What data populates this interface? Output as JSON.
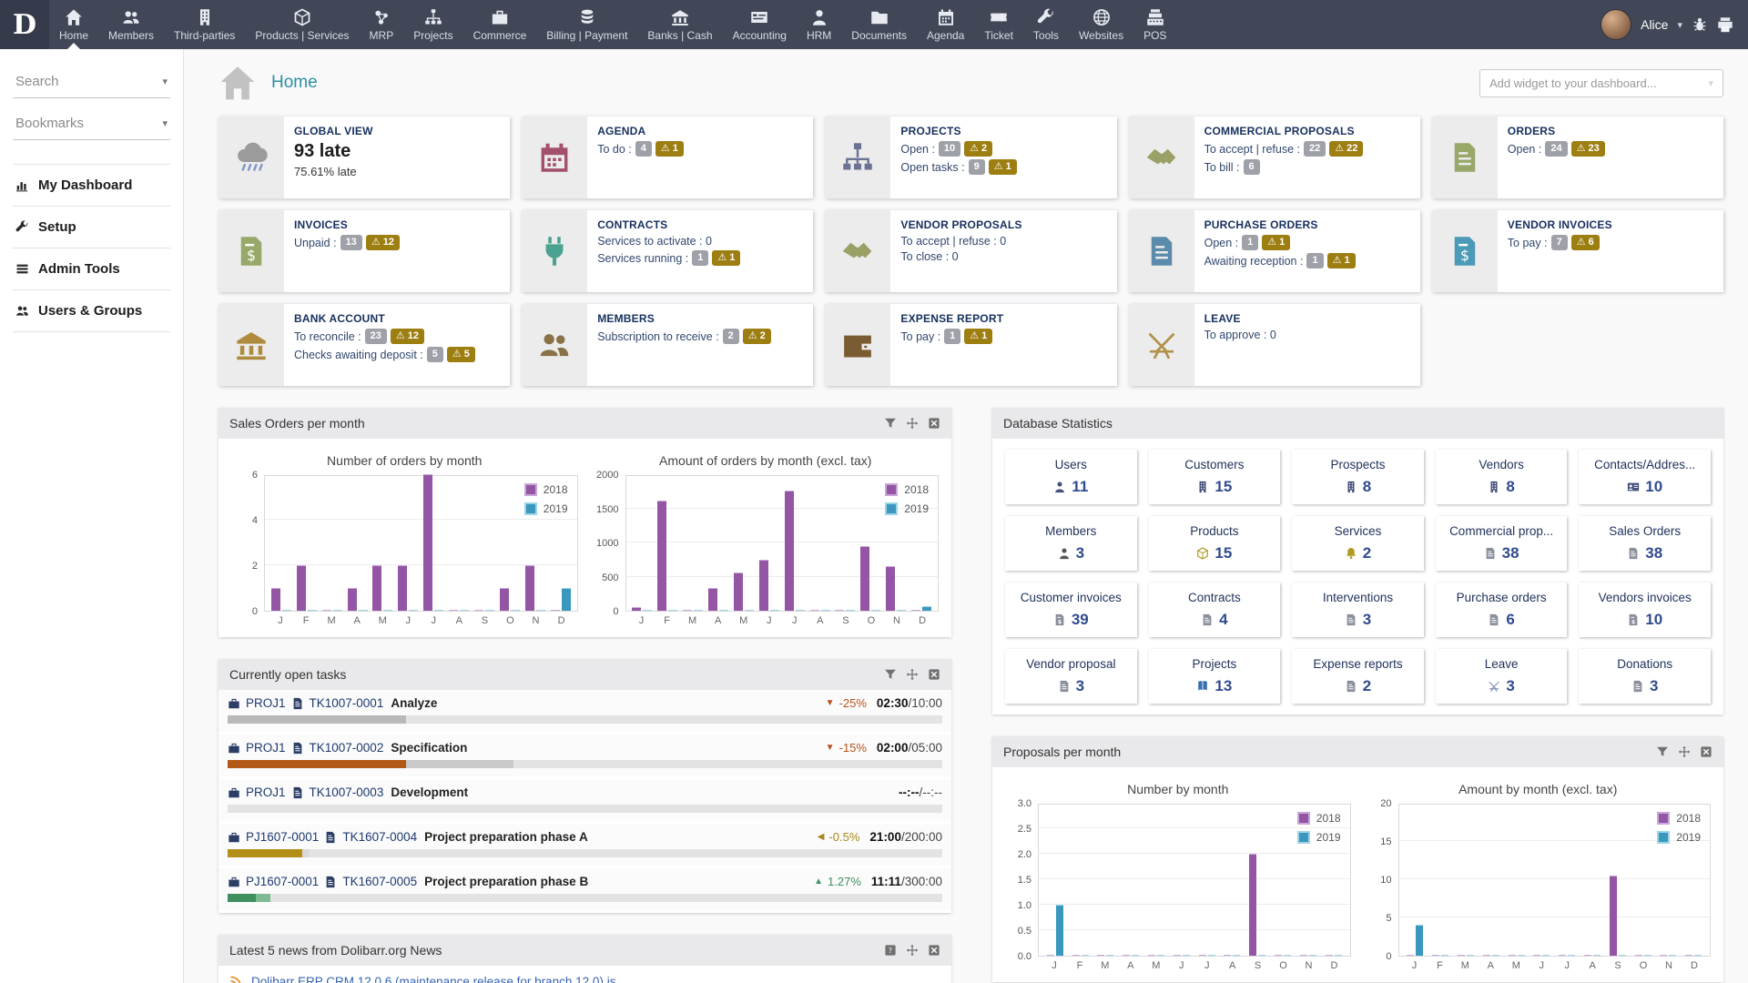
{
  "topnav": {
    "logo_letter": "D",
    "items": [
      {
        "label": "Home",
        "icon": "home-icon",
        "active": true
      },
      {
        "label": "Members",
        "icon": "members-icon"
      },
      {
        "label": "Third-parties",
        "icon": "building-icon"
      },
      {
        "label": "Products | Services",
        "icon": "cube-icon"
      },
      {
        "label": "MRP",
        "icon": "mrp-nodes-icon"
      },
      {
        "label": "Projects",
        "icon": "sitemap-icon"
      },
      {
        "label": "Commerce",
        "icon": "briefcase-icon"
      },
      {
        "label": "Billing | Payment",
        "icon": "coins-icon"
      },
      {
        "label": "Banks | Cash",
        "icon": "bank-icon"
      },
      {
        "label": "Accounting",
        "icon": "card-icon"
      },
      {
        "label": "HRM",
        "icon": "person-icon"
      },
      {
        "label": "Documents",
        "icon": "folder-icon"
      },
      {
        "label": "Agenda",
        "icon": "calendar-icon"
      },
      {
        "label": "Ticket",
        "icon": "ticket-icon"
      },
      {
        "label": "Tools",
        "icon": "wrench-icon"
      },
      {
        "label": "Websites",
        "icon": "globe-icon"
      },
      {
        "label": "POS",
        "icon": "register-icon"
      }
    ],
    "user_name": "Alice",
    "right_icons": [
      "bug-icon",
      "printer-icon"
    ]
  },
  "sidebar": {
    "search_label": "Search",
    "bookmarks_label": "Bookmarks",
    "items": [
      {
        "label": "My Dashboard",
        "icon": "chart-icon"
      },
      {
        "label": "Setup",
        "icon": "wrench-icon"
      },
      {
        "label": "Admin Tools",
        "icon": "list-icon"
      },
      {
        "label": "Users & Groups",
        "icon": "members-icon"
      }
    ]
  },
  "header": {
    "title": "Home",
    "add_widget_placeholder": "Add widget to your dashboard..."
  },
  "widgets": [
    {
      "title": "GLOBAL VIEW",
      "icon": "storm-icon",
      "color": "#8a8a8a",
      "big": "93 late",
      "sub": "75.61% late"
    },
    {
      "title": "AGENDA",
      "icon": "calendar-icon",
      "color": "#a3506b",
      "lines": [
        {
          "label": "To do :",
          "badges": [
            {
              "type": "count",
              "value": "4"
            },
            {
              "type": "warn",
              "value": "1"
            }
          ]
        }
      ]
    },
    {
      "title": "PROJECTS",
      "icon": "sitemap-icon",
      "color": "#6b7394",
      "lines": [
        {
          "label": "Open :",
          "badges": [
            {
              "type": "count",
              "value": "10"
            },
            {
              "type": "warn",
              "value": "2"
            }
          ]
        },
        {
          "label": "Open tasks :",
          "badges": [
            {
              "type": "count",
              "value": "9"
            },
            {
              "type": "warn",
              "value": "1"
            }
          ]
        }
      ]
    },
    {
      "title": "COMMERCIAL PROPOSALS",
      "icon": "handshake-icon",
      "color": "#9aa066",
      "lines": [
        {
          "label": "To accept | refuse :",
          "badges": [
            {
              "type": "count",
              "value": "22"
            },
            {
              "type": "warn",
              "value": "22"
            }
          ]
        },
        {
          "label": "To bill :",
          "badges": [
            {
              "type": "count",
              "value": "6"
            }
          ]
        }
      ]
    },
    {
      "title": "ORDERS",
      "icon": "document-icon",
      "color": "#98a869",
      "lines": [
        {
          "label": "Open :",
          "badges": [
            {
              "type": "count",
              "value": "24"
            },
            {
              "type": "warn",
              "value": "23"
            }
          ]
        }
      ]
    },
    {
      "title": "INVOICES",
      "icon": "invoice-icon",
      "color": "#98a869",
      "lines": [
        {
          "label": "Unpaid :",
          "badges": [
            {
              "type": "count",
              "value": "13"
            },
            {
              "type": "warn",
              "value": "12"
            }
          ]
        }
      ]
    },
    {
      "title": "CONTRACTS",
      "icon": "plug-icon",
      "color": "#4aa390",
      "lines": [
        {
          "label": "Services to activate : 0",
          "badges": []
        },
        {
          "label": "Services running :",
          "badges": [
            {
              "type": "count",
              "value": "1"
            },
            {
              "type": "warn",
              "value": "1"
            }
          ]
        }
      ]
    },
    {
      "title": "VENDOR PROPOSALS",
      "icon": "handshake-icon",
      "color": "#9aa066",
      "lines": [
        {
          "label": "To accept | refuse : 0",
          "badges": []
        },
        {
          "label": "To close : 0",
          "badges": []
        }
      ]
    },
    {
      "title": "PURCHASE ORDERS",
      "icon": "document-icon",
      "color": "#5b8bab",
      "lines": [
        {
          "label": "Open :",
          "badges": [
            {
              "type": "count",
              "value": "1"
            },
            {
              "type": "warn",
              "value": "1"
            }
          ]
        },
        {
          "label": "Awaiting reception :",
          "badges": [
            {
              "type": "count",
              "value": "1"
            },
            {
              "type": "warn",
              "value": "1"
            }
          ]
        }
      ]
    },
    {
      "title": "VENDOR INVOICES",
      "icon": "invoice-icon",
      "color": "#4a9ab8",
      "lines": [
        {
          "label": "To pay :",
          "badges": [
            {
              "type": "count",
              "value": "7"
            },
            {
              "type": "warn",
              "value": "6"
            }
          ]
        }
      ]
    },
    {
      "title": "BANK ACCOUNT",
      "icon": "bank-icon",
      "color": "#b08b3e",
      "lines": [
        {
          "label": "To reconcile :",
          "badges": [
            {
              "type": "count",
              "value": "23"
            },
            {
              "type": "warn",
              "value": "12"
            }
          ]
        },
        {
          "label": "Checks awaiting deposit :",
          "badges": [
            {
              "type": "count",
              "value": "5"
            },
            {
              "type": "warn",
              "value": "5"
            }
          ]
        }
      ]
    },
    {
      "title": "MEMBERS",
      "icon": "members-icon",
      "color": "#8a7248",
      "lines": [
        {
          "label": "Subscription to receive :",
          "badges": [
            {
              "type": "count",
              "value": "2"
            },
            {
              "type": "warn",
              "value": "2"
            }
          ]
        }
      ]
    },
    {
      "title": "EXPENSE REPORT",
      "icon": "wallet-icon",
      "color": "#7a5c33",
      "lines": [
        {
          "label": "To pay :",
          "badges": [
            {
              "type": "count",
              "value": "1"
            },
            {
              "type": "warn",
              "value": "1"
            }
          ]
        }
      ]
    },
    {
      "title": "LEAVE",
      "icon": "chair-icon",
      "color": "#b2914b",
      "lines": [
        {
          "label": "To approve : 0",
          "badges": []
        }
      ]
    }
  ],
  "panels": {
    "sales": {
      "title": "Sales Orders per month",
      "icons": [
        "filter-icon",
        "move-icon",
        "close-icon"
      ],
      "charts": [
        "sales_number",
        "sales_amount"
      ]
    },
    "tasks": {
      "title": "Currently open tasks",
      "icons": [
        "filter-icon",
        "move-icon",
        "close-icon"
      ]
    },
    "stats": {
      "title": "Database Statistics"
    },
    "proposals": {
      "title": "Proposals per month",
      "icons": [
        "filter-icon",
        "move-icon",
        "close-icon"
      ],
      "charts": [
        "proposals_number",
        "proposals_amount"
      ]
    },
    "news": {
      "title": "Latest 5 news from Dolibarr.org News",
      "icons": [
        "help-icon",
        "move-icon",
        "close-icon"
      ],
      "items": [
        {
          "text": "Dolibarr ERP CRM 12.0.6 (maintenance release for branch 12.0) is ..."
        }
      ]
    }
  },
  "tasks": [
    {
      "project": "PROJ1",
      "task_ref": "TK1007-0001",
      "task_label": "Analyze",
      "trend": "down",
      "percent": "-25%",
      "time_spent": "02:30",
      "time_planned": "10:00",
      "bar": [
        {
          "color": "#b9b9b9",
          "width": 25
        }
      ]
    },
    {
      "project": "PROJ1",
      "task_ref": "TK1007-0002",
      "task_label": "Specification",
      "trend": "down",
      "percent": "-15%",
      "time_spent": "02:00",
      "time_planned": "05:00",
      "bar": [
        {
          "color": "#b35917",
          "width": 25
        },
        {
          "color": "#c9c9c9",
          "width": 15
        }
      ]
    },
    {
      "project": "PROJ1",
      "task_ref": "TK1007-0003",
      "task_label": "Development",
      "trend": "",
      "percent": "",
      "time_spent": "--:--",
      "time_planned": "--:--",
      "bar": []
    },
    {
      "project": "PJ1607-0001",
      "task_ref": "TK1607-0004",
      "task_label": "Project preparation phase A",
      "trend": "left",
      "percent": "-0.5%",
      "time_spent": "21:00",
      "time_planned": "200:00",
      "bar": [
        {
          "color": "#b38f17",
          "width": 10.5
        },
        {
          "color": "#d9d9d9",
          "width": 1
        }
      ]
    },
    {
      "project": "PJ1607-0001",
      "task_ref": "TK1607-0005",
      "task_label": "Project preparation phase B",
      "trend": "up",
      "percent": "1.27%",
      "time_spent": "11:11",
      "time_planned": "300:00",
      "bar": [
        {
          "color": "#3f8f5f",
          "width": 4
        },
        {
          "color": "#7dbb94",
          "width": 2
        }
      ]
    }
  ],
  "stats": [
    {
      "label": "Users",
      "value": "11",
      "icon": "person-icon",
      "color": "#44517c"
    },
    {
      "label": "Customers",
      "value": "15",
      "icon": "building-icon",
      "color": "#44517c"
    },
    {
      "label": "Prospects",
      "value": "8",
      "icon": "building-icon",
      "color": "#44517c"
    },
    {
      "label": "Vendors",
      "value": "8",
      "icon": "building-icon",
      "color": "#44517c"
    },
    {
      "label": "Contacts/Addres...",
      "value": "10",
      "icon": "contact-icon",
      "color": "#44517c"
    },
    {
      "label": "Members",
      "value": "3",
      "icon": "person-icon",
      "color": "#555555"
    },
    {
      "label": "Products",
      "value": "15",
      "icon": "cube-icon",
      "color": "#b09a26"
    },
    {
      "label": "Services",
      "value": "2",
      "icon": "bell-icon",
      "color": "#b09a26"
    },
    {
      "label": "Commercial prop...",
      "value": "38",
      "icon": "document-icon",
      "color": "#8a8f9c"
    },
    {
      "label": "Sales Orders",
      "value": "38",
      "icon": "document-icon",
      "color": "#8a8f9c"
    },
    {
      "label": "Customer invoices",
      "value": "39",
      "icon": "invoice-icon",
      "color": "#8a8f9c"
    },
    {
      "label": "Contracts",
      "value": "4",
      "icon": "document-icon",
      "color": "#8a8f9c"
    },
    {
      "label": "Interventions",
      "value": "3",
      "icon": "document-icon",
      "color": "#8a8f9c"
    },
    {
      "label": "Purchase orders",
      "value": "6",
      "icon": "document-icon",
      "color": "#8a8f9c"
    },
    {
      "label": "Vendors invoices",
      "value": "10",
      "icon": "invoice-icon",
      "color": "#8a8f9c"
    },
    {
      "label": "Vendor proposal",
      "value": "3",
      "icon": "document-icon",
      "color": "#8a8f9c"
    },
    {
      "label": "Projects",
      "value": "13",
      "icon": "book-icon",
      "color": "#3a6fb0"
    },
    {
      "label": "Expense reports",
      "value": "2",
      "icon": "document-icon",
      "color": "#8a8f9c"
    },
    {
      "label": "Leave",
      "value": "3",
      "icon": "chair-icon",
      "color": "#7a8db0"
    },
    {
      "label": "Donations",
      "value": "3",
      "icon": "document-icon",
      "color": "#8a8f9c"
    }
  ],
  "chart_data": [
    {
      "id": "sales_number",
      "type": "bar",
      "title": "Number of orders by month",
      "categories": [
        "J",
        "F",
        "M",
        "A",
        "M",
        "J",
        "J",
        "A",
        "S",
        "O",
        "N",
        "D"
      ],
      "series": [
        {
          "name": "2018",
          "color": "#9455a5",
          "border": "#c8a8d8",
          "values": [
            1,
            2,
            0,
            1,
            2,
            2,
            6,
            0,
            0,
            1,
            2,
            0
          ]
        },
        {
          "name": "2019",
          "color": "#3a97bd",
          "border": "#9ed4e8",
          "values": [
            0,
            0,
            0,
            0,
            0,
            0,
            0,
            0,
            0,
            0,
            0,
            1
          ]
        }
      ],
      "ylim": [
        0,
        6
      ],
      "yticks": [
        0,
        2,
        4,
        6
      ],
      "ytick_labels": [
        "0",
        "2",
        "4",
        "6"
      ],
      "legend_position": "top-right",
      "grid": true
    },
    {
      "id": "sales_amount",
      "type": "bar",
      "title": "Amount of orders by month (excl. tax)",
      "categories": [
        "J",
        "F",
        "M",
        "A",
        "M",
        "J",
        "J",
        "A",
        "S",
        "O",
        "N",
        "D"
      ],
      "series": [
        {
          "name": "2018",
          "color": "#9455a5",
          "border": "#c8a8d8",
          "values": [
            50,
            1610,
            0,
            330,
            560,
            740,
            1760,
            0,
            0,
            940,
            650,
            0
          ]
        },
        {
          "name": "2019",
          "color": "#3a97bd",
          "border": "#9ed4e8",
          "values": [
            0,
            0,
            0,
            0,
            0,
            0,
            0,
            0,
            0,
            0,
            0,
            60
          ]
        }
      ],
      "ylim": [
        0,
        2000
      ],
      "yticks": [
        0,
        500,
        1000,
        1500,
        2000
      ],
      "ytick_labels": [
        "0",
        "500",
        "1000",
        "1500",
        "2000"
      ],
      "legend_position": "top-right",
      "grid": true
    },
    {
      "id": "proposals_number",
      "type": "bar",
      "title": "Number by month",
      "categories": [
        "J",
        "F",
        "M",
        "A",
        "M",
        "J",
        "J",
        "A",
        "S",
        "O",
        "N",
        "D"
      ],
      "series": [
        {
          "name": "2018",
          "color": "#9455a5",
          "border": "#c8a8d8",
          "values": [
            0,
            0,
            0,
            0,
            0,
            0,
            0,
            0,
            2,
            0,
            0,
            0
          ]
        },
        {
          "name": "2019",
          "color": "#3a97bd",
          "border": "#9ed4e8",
          "values": [
            1,
            0,
            0,
            0,
            0,
            0,
            0,
            0,
            0,
            0,
            0,
            0
          ]
        }
      ],
      "ylim": [
        0,
        3
      ],
      "yticks": [
        0,
        0.5,
        1,
        1.5,
        2,
        2.5,
        3
      ],
      "ytick_labels": [
        "0.0",
        "0.5",
        "1.0",
        "1.5",
        "2.0",
        "2.5",
        "3.0"
      ],
      "legend_position": "top-right",
      "grid": true
    },
    {
      "id": "proposals_amount",
      "type": "bar",
      "title": "Amount by month (excl. tax)",
      "categories": [
        "J",
        "F",
        "M",
        "A",
        "M",
        "J",
        "J",
        "A",
        "S",
        "O",
        "N",
        "D"
      ],
      "series": [
        {
          "name": "2018",
          "color": "#9455a5",
          "border": "#c8a8d8",
          "values": [
            0,
            0,
            0,
            0,
            0,
            0,
            0,
            0,
            10.5,
            0,
            0,
            0
          ]
        },
        {
          "name": "2019",
          "color": "#3a97bd",
          "border": "#9ed4e8",
          "values": [
            4,
            0,
            0,
            0,
            0,
            0,
            0,
            0,
            0,
            0,
            0,
            0
          ]
        }
      ],
      "ylim": [
        0,
        20
      ],
      "yticks": [
        0,
        5,
        10,
        15,
        20
      ],
      "ytick_labels": [
        "0",
        "5",
        "10",
        "15",
        "20"
      ],
      "legend_position": "top-right",
      "grid": true
    }
  ]
}
